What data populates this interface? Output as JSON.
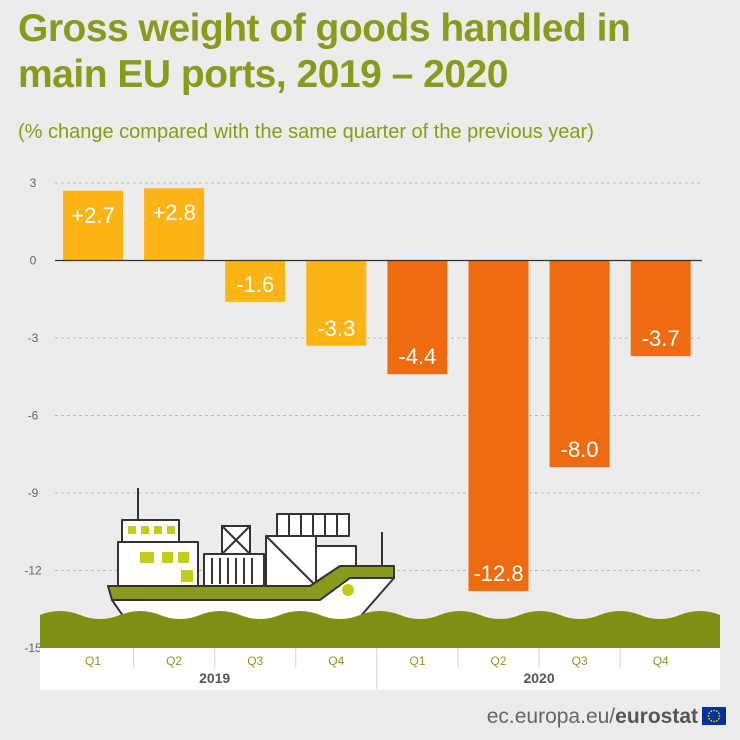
{
  "title": "Gross weight of goods handled in main EU ports, 2019 – 2020",
  "subtitle": "(% change compared with the same quarter of the previous year)",
  "footer": {
    "url_prefix": "ec.europa.eu/",
    "brand": "eurostat"
  },
  "colors": {
    "bar_2019": "#fdb515",
    "bar_2020": "#ef6b0f",
    "title": "#8a9a1b",
    "wave": "#7f8f14",
    "ship_hull": "#8a9a1b",
    "axis_band": "#ffffff"
  },
  "chart_data": {
    "type": "bar",
    "title": "Gross weight of goods handled in main EU ports, 2019 – 2020",
    "subtitle": "(% change compared with the same quarter of the previous year)",
    "xlabel": "",
    "ylabel": "",
    "ylim": [
      -15,
      3
    ],
    "yticks": [
      3,
      0,
      -3,
      -6,
      -9,
      -12,
      -15
    ],
    "grid": true,
    "groups": [
      {
        "name": "2019",
        "quarters": [
          "Q1",
          "Q2",
          "Q3",
          "Q4"
        ]
      },
      {
        "name": "2020",
        "quarters": [
          "Q1",
          "Q2",
          "Q3",
          "Q4"
        ]
      }
    ],
    "categories": [
      "Q1 2019",
      "Q2 2019",
      "Q3 2019",
      "Q4 2019",
      "Q1 2020",
      "Q2 2020",
      "Q3 2020",
      "Q4 2020"
    ],
    "values": [
      2.7,
      2.8,
      -1.6,
      -3.3,
      -4.4,
      -12.8,
      -8.0,
      -3.7
    ],
    "data_labels": [
      "+2.7",
      "+2.8",
      "-1.6",
      "-3.3",
      "-4.4",
      "-12.8",
      "-8.0",
      "-3.7"
    ]
  }
}
